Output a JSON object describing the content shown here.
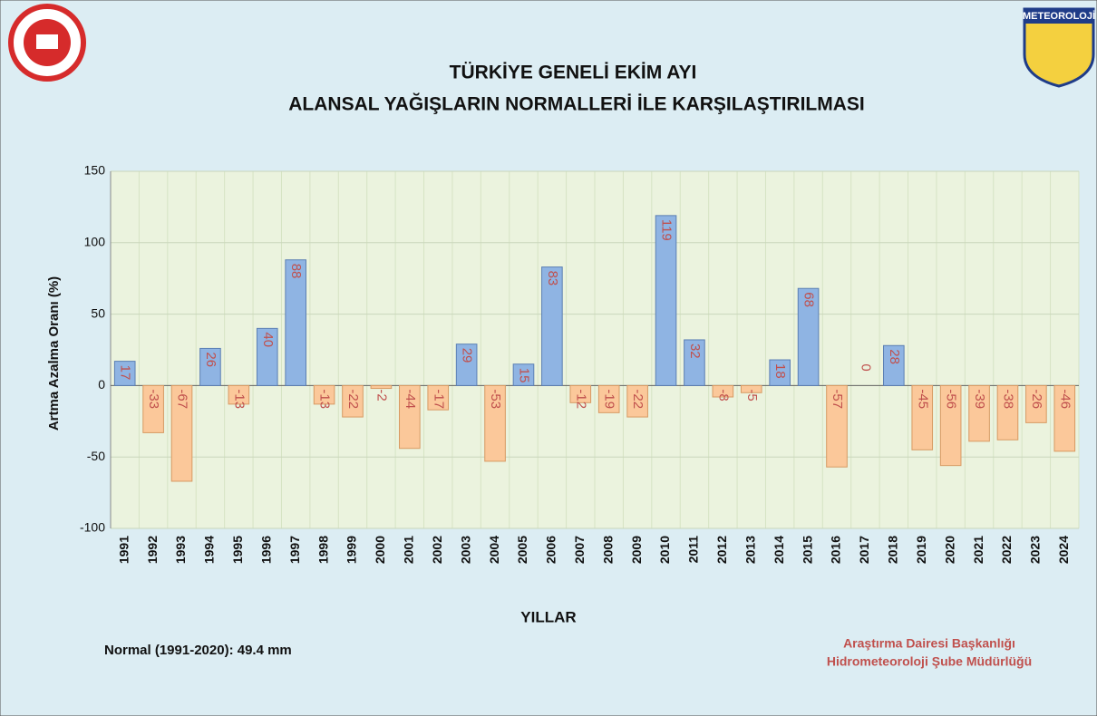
{
  "chart_data": {
    "type": "bar",
    "title": "TÜRKİYE GENELİ  EKİM AYI",
    "subtitle": "ALANSAL YAĞIŞLARIN NORMALLERİ İLE KARŞILAŞTIRILMASI",
    "y_label": "Artma Azalma Oranı (%)",
    "x_label": "YILLAR",
    "note": "Normal (1991-2020):  49.4 mm",
    "credits": [
      "Araştırma Dairesi Başkanlığı",
      "Hidrometeoroloji Şube Müdürlüğü"
    ],
    "logo_text": "METEOROLOJİ",
    "categories": [
      "1991",
      "1992",
      "1993",
      "1994",
      "1995",
      "1996",
      "1997",
      "1998",
      "1999",
      "2000",
      "2001",
      "2002",
      "2003",
      "2004",
      "2005",
      "2006",
      "2007",
      "2008",
      "2009",
      "2010",
      "2011",
      "2012",
      "2013",
      "2014",
      "2015",
      "2016",
      "2017",
      "2018",
      "2019",
      "2020",
      "2021",
      "2022",
      "2023",
      "2024"
    ],
    "values": [
      17,
      -33,
      -67,
      26,
      -13,
      40,
      88,
      -13,
      -22,
      -2,
      -44,
      -17,
      29,
      -53,
      15,
      83,
      -12,
      -19,
      -22,
      119,
      32,
      -8,
      -5,
      18,
      68,
      -57,
      0,
      28,
      -45,
      -56,
      -39,
      -38,
      -26,
      -46
    ],
    "positive_color": "#8fb4e3",
    "negative_color": "#fbc89a",
    "label_color": "#c0504d",
    "ylim": [
      -100,
      150
    ],
    "yticks": [
      -100,
      -50,
      0,
      50,
      100,
      150
    ],
    "grid": true
  }
}
